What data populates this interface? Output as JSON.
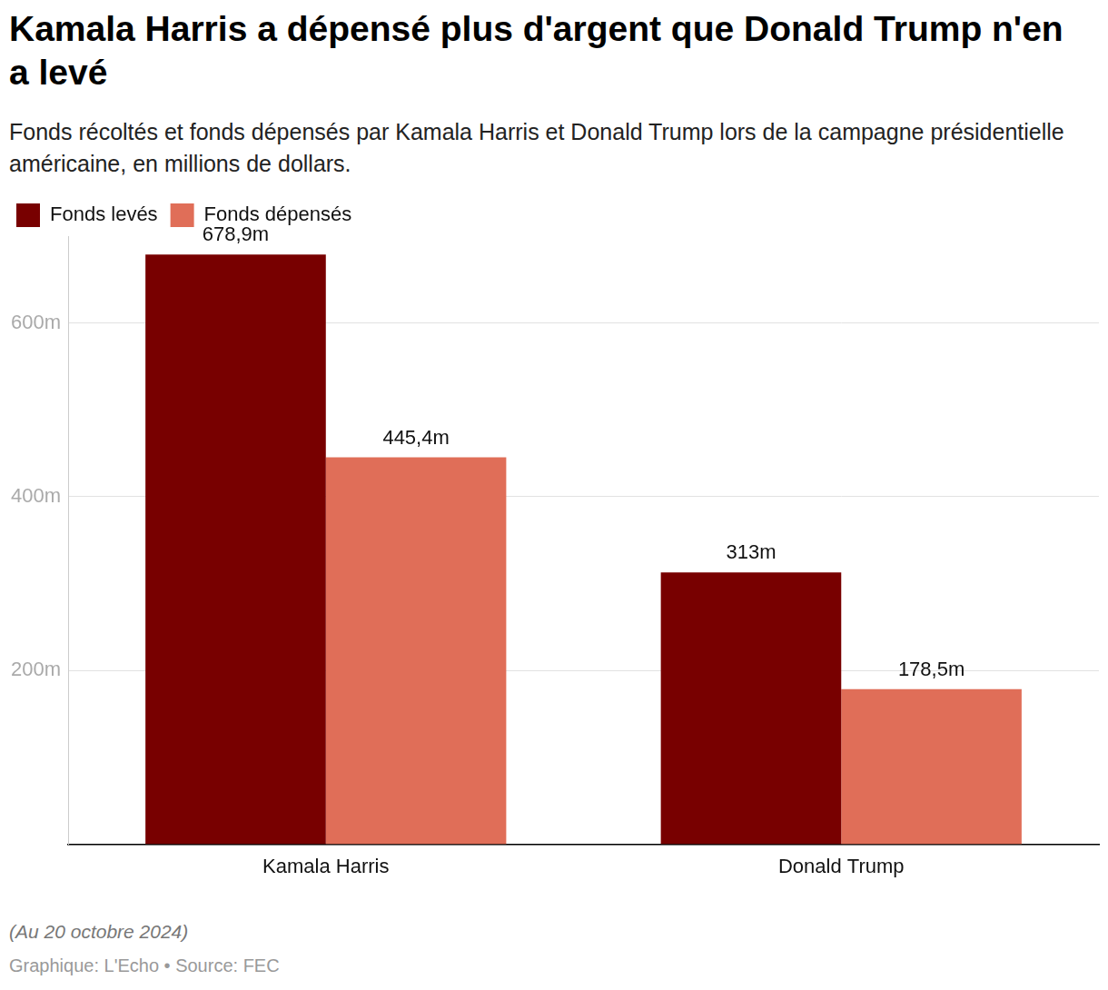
{
  "chart_data": {
    "type": "bar",
    "title": "Kamala Harris a dépensé plus d'argent que Donald Trump n'en a levé",
    "subtitle": "Fonds récoltés et fonds dépensés par Kamala Harris et Donald Trump lors de la campagne présidentielle américaine, en millions de dollars.",
    "categories": [
      "Kamala Harris",
      "Donald Trump"
    ],
    "series": [
      {
        "name": "Fonds levés",
        "color": "#780000",
        "values": [
          678.9,
          313
        ],
        "value_labels": [
          "678,9m",
          "313m"
        ]
      },
      {
        "name": "Fonds dépensés",
        "color": "#e06e58",
        "values": [
          445.4,
          178.5
        ],
        "value_labels": [
          "445,4m",
          "178,5m"
        ]
      }
    ],
    "ylim": [
      0,
      700
    ],
    "yticks": [
      {
        "value": 200,
        "label": "200m"
      },
      {
        "value": 400,
        "label": "400m"
      },
      {
        "value": 600,
        "label": "600m"
      }
    ],
    "grid": true,
    "legend": "top-left",
    "data_labels": true,
    "annotations": [
      "(Au 20 octobre 2024)",
      "Graphique: L'Echo • Source: FEC"
    ]
  }
}
